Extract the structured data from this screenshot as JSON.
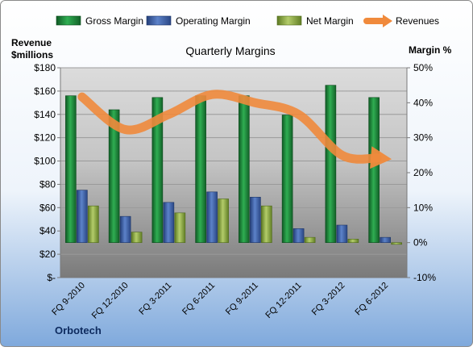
{
  "chart_data": {
    "type": "bar",
    "title": "Quarterly Margins",
    "left_axis_title": [
      "Revenue",
      "$millions"
    ],
    "right_axis_title": "Margin %",
    "source_label": "Orbotech",
    "categories": [
      "FQ 9-2010",
      "FQ 12-2010",
      "FQ 3-2011",
      "FQ 6-2011",
      "FQ 9-2011",
      "FQ 12-2011",
      "FQ 3-2012",
      "FQ 6-2012"
    ],
    "left_axis": {
      "range": [
        0,
        180
      ],
      "ticks": [
        0,
        20,
        40,
        60,
        80,
        100,
        120,
        140,
        160,
        180
      ],
      "tick_labels": [
        "$-",
        "$20",
        "$40",
        "$60",
        "$80",
        "$100",
        "$120",
        "$140",
        "$160",
        "$180"
      ]
    },
    "right_axis": {
      "range": [
        -10,
        50
      ],
      "ticks": [
        -10,
        0,
        10,
        20,
        30,
        40,
        50
      ],
      "tick_labels": [
        "-10%",
        "0%",
        "10%",
        "20%",
        "30%",
        "40%",
        "50%"
      ]
    },
    "series": [
      {
        "name": "Gross Margin",
        "axis": "right",
        "kind": "bar",
        "color": "#1e8c3c",
        "values": [
          42.0,
          38.0,
          41.5,
          42.0,
          42.0,
          36.5,
          45.0,
          41.5
        ]
      },
      {
        "name": "Operating Margin",
        "axis": "right",
        "kind": "bar",
        "color": "#3f62a8",
        "values": [
          15.0,
          7.5,
          11.5,
          14.5,
          13.0,
          4.0,
          5.0,
          1.5
        ]
      },
      {
        "name": "Net Margin",
        "axis": "right",
        "kind": "bar",
        "color": "#8eaa45",
        "values": [
          10.5,
          3.0,
          8.5,
          12.5,
          10.5,
          1.5,
          1.0,
          -0.5
        ]
      },
      {
        "name": "Revenues",
        "axis": "left",
        "kind": "line",
        "color": "#f08a3c",
        "values": [
          155,
          127,
          140,
          157,
          150,
          140,
          105,
          102
        ]
      }
    ],
    "grid": true,
    "legend_position": "top"
  }
}
